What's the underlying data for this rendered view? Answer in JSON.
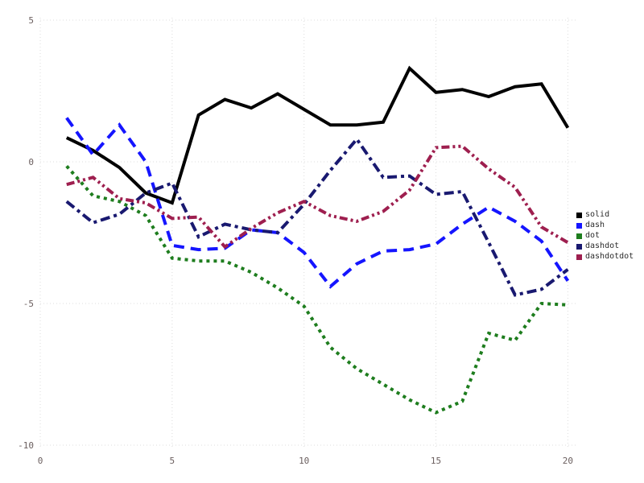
{
  "chart_data": {
    "type": "line",
    "title": "",
    "xlabel": "",
    "ylabel": "",
    "x": [
      1,
      2,
      3,
      4,
      5,
      6,
      7,
      8,
      9,
      10,
      11,
      12,
      13,
      14,
      15,
      16,
      17,
      18,
      19,
      20
    ],
    "series": [
      {
        "name": "solid",
        "color": "#000000",
        "dash": "solid",
        "values": [
          0.85,
          0.4,
          -0.2,
          -1.1,
          -1.45,
          1.65,
          2.2,
          1.9,
          2.4,
          1.85,
          1.3,
          1.3,
          1.4,
          3.3,
          2.45,
          2.55,
          2.3,
          2.65,
          2.75,
          1.2
        ]
      },
      {
        "name": "dash",
        "color": "#1515ff",
        "dash": "dash",
        "values": [
          1.55,
          0.25,
          1.3,
          0.0,
          -2.95,
          -3.1,
          -3.05,
          -2.4,
          -2.5,
          -3.2,
          -4.4,
          -3.6,
          -3.15,
          -3.1,
          -2.9,
          -2.2,
          -1.6,
          -2.1,
          -2.8,
          -4.2
        ]
      },
      {
        "name": "dot",
        "color": "#1e7d1e",
        "dash": "dot",
        "values": [
          -0.15,
          -1.2,
          -1.4,
          -1.9,
          -3.4,
          -3.5,
          -3.5,
          -3.9,
          -4.45,
          -5.1,
          -6.55,
          -7.3,
          -7.85,
          -8.4,
          -8.85,
          -8.45,
          -6.05,
          -6.3,
          -5.0,
          -5.05
        ]
      },
      {
        "name": "dashdot",
        "color": "#191970",
        "dash": "dashdot",
        "values": [
          -1.4,
          -2.15,
          -1.85,
          -1.1,
          -0.75,
          -2.65,
          -2.2,
          -2.4,
          -2.5,
          -1.5,
          -0.3,
          0.8,
          -0.55,
          -0.5,
          -1.15,
          -1.05,
          -2.85,
          -4.7,
          -4.5,
          -3.8
        ]
      },
      {
        "name": "dashdotdot",
        "color": "#9e1f4f",
        "dash": "dashdotdot",
        "values": [
          -0.8,
          -0.55,
          -1.3,
          -1.45,
          -2.0,
          -1.95,
          -3.0,
          -2.35,
          -1.8,
          -1.4,
          -1.9,
          -2.1,
          -1.75,
          -1.0,
          0.5,
          0.55,
          -0.25,
          -0.9,
          -2.3,
          -2.85
        ]
      }
    ],
    "xticks": [
      "0",
      "5",
      "10",
      "15",
      "20"
    ],
    "xtick_values": [
      0,
      5,
      10,
      15,
      20
    ],
    "yticks": [
      "5",
      "0",
      "-5",
      "-10"
    ],
    "ytick_values": [
      5,
      0,
      -5,
      -10
    ],
    "xlim": [
      0,
      20
    ],
    "ylim": [
      -10,
      5
    ],
    "grid": "dotted",
    "legend_position": "right",
    "legend_labels": [
      "solid",
      "dash",
      "dot",
      "dashdot",
      "dashdotdot"
    ]
  },
  "colors": {
    "background": "#ffffff",
    "gridline": "#dcdcdc",
    "tick_label": "#6a5e5e",
    "legend_text": "#2b2b2b"
  }
}
